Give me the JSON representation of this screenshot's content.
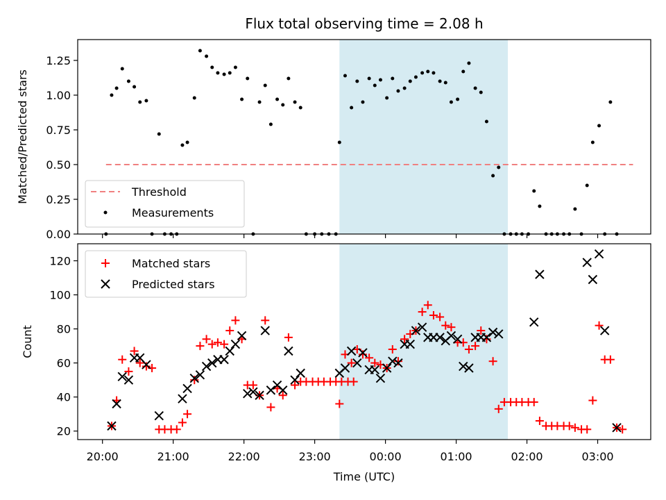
{
  "chart_data": [
    {
      "type": "scatter",
      "title": "Flux total observing time = 2.08 h",
      "xlabel": "",
      "ylabel": "Matched/Predicted stars",
      "ylim": [
        0,
        1.4
      ],
      "yticks": [
        "0.00",
        "0.25",
        "0.50",
        "0.75",
        "1.00",
        "1.25"
      ],
      "legend_position": "lower-left",
      "highlight": {
        "x_start": 23.35,
        "x_end": 25.73,
        "color": "#add8e6"
      },
      "threshold": {
        "name": "Threshold",
        "y": 0.5,
        "x_start": 20.05,
        "x_end": 27.5,
        "color": "#f08080"
      },
      "series": [
        {
          "name": "Measurements",
          "color": "#000000",
          "points": [
            [
              20.05,
              0.0
            ],
            [
              20.13,
              1.0
            ],
            [
              20.2,
              1.05
            ],
            [
              20.28,
              1.19
            ],
            [
              20.37,
              1.1
            ],
            [
              20.45,
              1.06
            ],
            [
              20.53,
              0.95
            ],
            [
              20.62,
              0.96
            ],
            [
              20.7,
              0.0
            ],
            [
              20.8,
              0.72
            ],
            [
              20.88,
              0.0
            ],
            [
              20.97,
              0.0
            ],
            [
              21.05,
              0.0
            ],
            [
              21.13,
              0.64
            ],
            [
              21.2,
              0.66
            ],
            [
              21.3,
              0.98
            ],
            [
              21.38,
              1.32
            ],
            [
              21.47,
              1.28
            ],
            [
              21.55,
              1.2
            ],
            [
              21.63,
              1.16
            ],
            [
              21.72,
              1.15
            ],
            [
              21.8,
              1.16
            ],
            [
              21.88,
              1.2
            ],
            [
              21.97,
              0.97
            ],
            [
              22.05,
              1.12
            ],
            [
              22.13,
              0.0
            ],
            [
              22.22,
              0.95
            ],
            [
              22.3,
              1.07
            ],
            [
              22.38,
              0.79
            ],
            [
              22.47,
              0.97
            ],
            [
              22.55,
              0.93
            ],
            [
              22.63,
              1.12
            ],
            [
              22.72,
              0.95
            ],
            [
              22.8,
              0.91
            ],
            [
              22.88,
              0.0
            ],
            [
              23.0,
              0.0
            ],
            [
              23.1,
              0.0
            ],
            [
              23.2,
              0.0
            ],
            [
              23.3,
              0.0
            ],
            [
              23.35,
              0.66
            ],
            [
              23.43,
              1.14
            ],
            [
              23.52,
              0.91
            ],
            [
              23.6,
              1.1
            ],
            [
              23.68,
              0.95
            ],
            [
              23.77,
              1.12
            ],
            [
              23.85,
              1.07
            ],
            [
              23.93,
              1.11
            ],
            [
              24.02,
              0.98
            ],
            [
              24.1,
              1.12
            ],
            [
              24.18,
              1.03
            ],
            [
              24.27,
              1.05
            ],
            [
              24.35,
              1.1
            ],
            [
              24.43,
              1.13
            ],
            [
              24.52,
              1.16
            ],
            [
              24.6,
              1.17
            ],
            [
              24.68,
              1.16
            ],
            [
              24.77,
              1.1
            ],
            [
              24.85,
              1.09
            ],
            [
              24.93,
              0.95
            ],
            [
              25.02,
              0.97
            ],
            [
              25.1,
              1.17
            ],
            [
              25.18,
              1.23
            ],
            [
              25.27,
              1.05
            ],
            [
              25.35,
              1.02
            ],
            [
              25.43,
              0.81
            ],
            [
              25.52,
              0.42
            ],
            [
              25.6,
              0.48
            ],
            [
              25.68,
              0.0
            ],
            [
              25.77,
              0.0
            ],
            [
              25.85,
              0.0
            ],
            [
              25.93,
              0.0
            ],
            [
              26.02,
              0.0
            ],
            [
              26.1,
              0.31
            ],
            [
              26.18,
              0.2
            ],
            [
              26.27,
              0.0
            ],
            [
              26.35,
              0.0
            ],
            [
              26.43,
              0.0
            ],
            [
              26.52,
              0.0
            ],
            [
              26.6,
              0.0
            ],
            [
              26.68,
              0.18
            ],
            [
              26.77,
              0.0
            ],
            [
              26.85,
              0.35
            ],
            [
              26.93,
              0.66
            ],
            [
              27.02,
              0.78
            ],
            [
              27.1,
              0.0
            ],
            [
              27.18,
              0.95
            ],
            [
              27.27,
              0.0
            ]
          ]
        }
      ]
    },
    {
      "type": "scatter",
      "title": "",
      "xlabel": "Time (UTC)",
      "ylabel": "Count",
      "ylim": [
        15,
        130
      ],
      "yticks": [
        "20",
        "40",
        "60",
        "80",
        "100",
        "120"
      ],
      "xticks": [
        {
          "value": 20.0,
          "label": "20:00"
        },
        {
          "value": 21.0,
          "label": "21:00"
        },
        {
          "value": 22.0,
          "label": "22:00"
        },
        {
          "value": 23.0,
          "label": "23:00"
        },
        {
          "value": 24.0,
          "label": "00:00"
        },
        {
          "value": 25.0,
          "label": "01:00"
        },
        {
          "value": 26.0,
          "label": "02:00"
        },
        {
          "value": 27.0,
          "label": "03:00"
        }
      ],
      "xlim": [
        19.65,
        27.75
      ],
      "legend_position": "upper-left",
      "highlight": {
        "x_start": 23.35,
        "x_end": 25.73,
        "color": "#add8e6"
      },
      "series": [
        {
          "name": "Matched stars",
          "marker": "plus",
          "color": "#ff0000",
          "points": [
            [
              20.13,
              23
            ],
            [
              20.2,
              38
            ],
            [
              20.28,
              62
            ],
            [
              20.37,
              55
            ],
            [
              20.45,
              67
            ],
            [
              20.53,
              60
            ],
            [
              20.62,
              58
            ],
            [
              20.7,
              57
            ],
            [
              20.8,
              21
            ],
            [
              20.88,
              21
            ],
            [
              20.97,
              21
            ],
            [
              21.05,
              21
            ],
            [
              21.13,
              25
            ],
            [
              21.2,
              30
            ],
            [
              21.3,
              50
            ],
            [
              21.38,
              70
            ],
            [
              21.47,
              74
            ],
            [
              21.55,
              71
            ],
            [
              21.63,
              72
            ],
            [
              21.72,
              71
            ],
            [
              21.8,
              79
            ],
            [
              21.88,
              85
            ],
            [
              21.97,
              74
            ],
            [
              22.05,
              47
            ],
            [
              22.13,
              47
            ],
            [
              22.22,
              41
            ],
            [
              22.3,
              85
            ],
            [
              22.38,
              34
            ],
            [
              22.47,
              45
            ],
            [
              22.55,
              41
            ],
            [
              22.63,
              75
            ],
            [
              22.72,
              47
            ],
            [
              22.8,
              49
            ],
            [
              22.88,
              49
            ],
            [
              22.97,
              49
            ],
            [
              23.05,
              49
            ],
            [
              23.13,
              49
            ],
            [
              23.22,
              49
            ],
            [
              23.3,
              49
            ],
            [
              23.38,
              49
            ],
            [
              23.47,
              49
            ],
            [
              23.55,
              49
            ],
            [
              23.35,
              36
            ],
            [
              23.43,
              65
            ],
            [
              23.52,
              60
            ],
            [
              23.6,
              68
            ],
            [
              23.68,
              65
            ],
            [
              23.77,
              63
            ],
            [
              23.85,
              60
            ],
            [
              23.93,
              59
            ],
            [
              24.02,
              57
            ],
            [
              24.1,
              68
            ],
            [
              24.18,
              61
            ],
            [
              24.27,
              74
            ],
            [
              24.35,
              77
            ],
            [
              24.43,
              79
            ],
            [
              24.52,
              90
            ],
            [
              24.6,
              94
            ],
            [
              24.68,
              88
            ],
            [
              24.77,
              87
            ],
            [
              24.85,
              82
            ],
            [
              24.93,
              81
            ],
            [
              25.02,
              72
            ],
            [
              25.1,
              72
            ],
            [
              25.18,
              68
            ],
            [
              25.27,
              70
            ],
            [
              25.35,
              79
            ],
            [
              25.43,
              74
            ],
            [
              25.52,
              61
            ],
            [
              25.6,
              33
            ],
            [
              25.68,
              37
            ],
            [
              25.77,
              37
            ],
            [
              25.85,
              37
            ],
            [
              25.93,
              37
            ],
            [
              26.02,
              37
            ],
            [
              26.1,
              37
            ],
            [
              26.18,
              26
            ],
            [
              26.27,
              23
            ],
            [
              26.35,
              23
            ],
            [
              26.43,
              23
            ],
            [
              26.52,
              23
            ],
            [
              26.6,
              23
            ],
            [
              26.68,
              22
            ],
            [
              26.77,
              21
            ],
            [
              26.85,
              21
            ],
            [
              26.93,
              38
            ],
            [
              27.02,
              82
            ],
            [
              27.1,
              62
            ],
            [
              27.18,
              62
            ],
            [
              27.27,
              22
            ],
            [
              27.35,
              21
            ]
          ]
        },
        {
          "name": "Predicted stars",
          "marker": "x",
          "color": "#000000",
          "points": [
            [
              20.13,
              23
            ],
            [
              20.2,
              36
            ],
            [
              20.28,
              52
            ],
            [
              20.37,
              50
            ],
            [
              20.45,
              63
            ],
            [
              20.53,
              63
            ],
            [
              20.62,
              59
            ],
            [
              20.8,
              29
            ],
            [
              21.13,
              39
            ],
            [
              21.2,
              45
            ],
            [
              21.3,
              51
            ],
            [
              21.38,
              53
            ],
            [
              21.47,
              58
            ],
            [
              21.55,
              60
            ],
            [
              21.63,
              62
            ],
            [
              21.72,
              62
            ],
            [
              21.8,
              67
            ],
            [
              21.88,
              71
            ],
            [
              21.97,
              76
            ],
            [
              22.05,
              42
            ],
            [
              22.13,
              43
            ],
            [
              22.22,
              41
            ],
            [
              22.3,
              79
            ],
            [
              22.38,
              44
            ],
            [
              22.47,
              47
            ],
            [
              22.55,
              44
            ],
            [
              22.63,
              67
            ],
            [
              22.72,
              50
            ],
            [
              22.8,
              54
            ],
            [
              23.35,
              54
            ],
            [
              23.43,
              57
            ],
            [
              23.52,
              67
            ],
            [
              23.6,
              60
            ],
            [
              23.68,
              66
            ],
            [
              23.77,
              56
            ],
            [
              23.85,
              56
            ],
            [
              23.93,
              51
            ],
            [
              24.02,
              57
            ],
            [
              24.1,
              61
            ],
            [
              24.18,
              60
            ],
            [
              24.27,
              71
            ],
            [
              24.35,
              71
            ],
            [
              24.43,
              79
            ],
            [
              24.52,
              81
            ],
            [
              24.6,
              75
            ],
            [
              24.68,
              75
            ],
            [
              24.77,
              75
            ],
            [
              24.85,
              73
            ],
            [
              24.93,
              76
            ],
            [
              25.02,
              74
            ],
            [
              25.1,
              58
            ],
            [
              25.18,
              57
            ],
            [
              25.27,
              75
            ],
            [
              25.35,
              75
            ],
            [
              25.43,
              75
            ],
            [
              25.52,
              78
            ],
            [
              25.6,
              77
            ],
            [
              26.1,
              84
            ],
            [
              26.18,
              112
            ],
            [
              26.85,
              119
            ],
            [
              26.93,
              109
            ],
            [
              27.02,
              124
            ],
            [
              27.1,
              79
            ],
            [
              27.27,
              22
            ]
          ]
        }
      ]
    }
  ]
}
